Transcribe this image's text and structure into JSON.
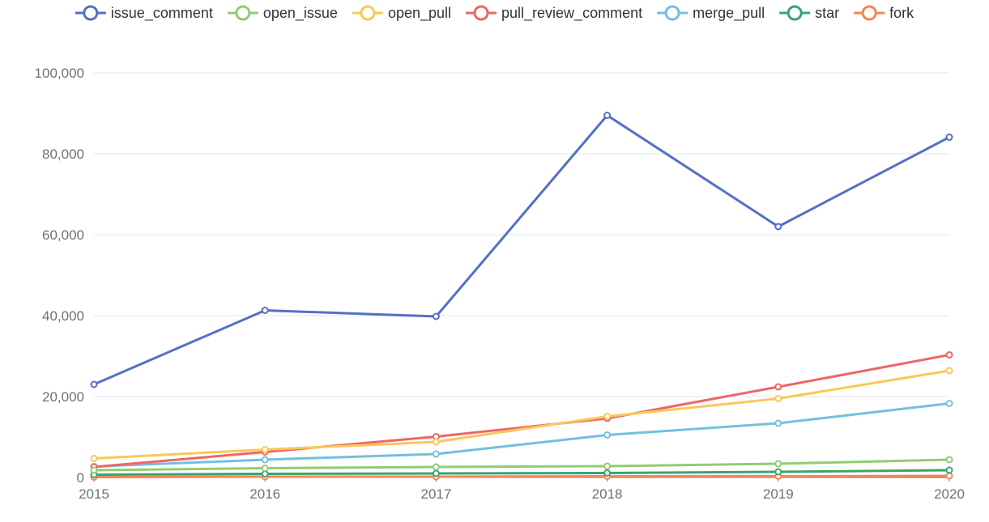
{
  "chart_data": {
    "type": "line",
    "title": "",
    "xlabel": "",
    "ylabel": "",
    "categories": [
      "2015",
      "2016",
      "2017",
      "2018",
      "2019",
      "2020"
    ],
    "ylim": [
      0,
      100000
    ],
    "yticks": [
      0,
      20000,
      40000,
      60000,
      80000,
      100000
    ],
    "ytick_labels": [
      "0",
      "20,000",
      "40,000",
      "60,000",
      "80,000",
      "100,000"
    ],
    "grid": true,
    "legend_position": "top-center",
    "series": [
      {
        "name": "issue_comment",
        "color": "#5470c6",
        "values": [
          23000,
          41300,
          39800,
          89500,
          62000,
          84100
        ]
      },
      {
        "name": "open_issue",
        "color": "#91cc75",
        "values": [
          1800,
          2300,
          2600,
          2800,
          3400,
          4400
        ]
      },
      {
        "name": "open_pull",
        "color": "#fac858",
        "values": [
          4700,
          6900,
          8800,
          15100,
          19500,
          26400
        ]
      },
      {
        "name": "pull_review_comment",
        "color": "#ee6666",
        "values": [
          2600,
          6300,
          10100,
          14600,
          22400,
          30300
        ]
      },
      {
        "name": "merge_pull",
        "color": "#73c0de",
        "values": [
          2700,
          4400,
          5800,
          10500,
          13400,
          18300
        ]
      },
      {
        "name": "star",
        "color": "#3ba272",
        "values": [
          700,
          900,
          1000,
          1100,
          1400,
          1800
        ]
      },
      {
        "name": "fork",
        "color": "#fc8452",
        "values": [
          100,
          200,
          200,
          300,
          300,
          400
        ]
      }
    ]
  }
}
